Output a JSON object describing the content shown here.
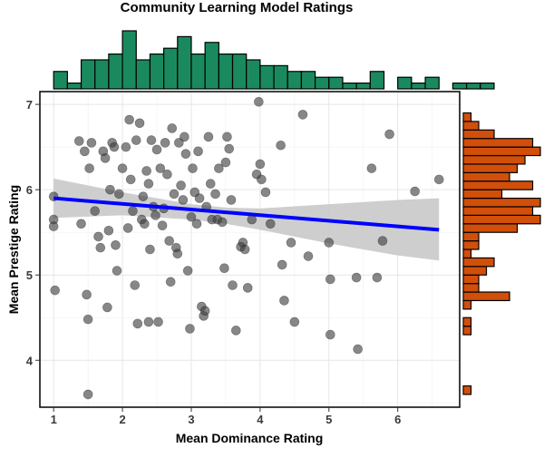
{
  "chart_data": {
    "type": "scatter",
    "title": "Community Learning Model Ratings",
    "xlabel": "Mean Dominance Rating",
    "ylabel": "Mean Prestige Rating",
    "xlim": [
      0.8,
      6.9
    ],
    "ylim": [
      3.45,
      7.15
    ],
    "xticks": [
      "1",
      "2",
      "3",
      "4",
      "5",
      "6"
    ],
    "yticks": [
      "4",
      "5",
      "6",
      "7"
    ],
    "grid": true,
    "colors": {
      "points": "#3d3d3d",
      "regression_line": "#0000ff",
      "confidence_band": "#c9c9c9",
      "top_histogram": "#1a8a5e",
      "right_histogram": "#d14f0a"
    },
    "regression": {
      "x": [
        1.0,
        6.6
      ],
      "y": [
        5.9,
        5.53
      ]
    },
    "confidence_band": {
      "x": [
        1.0,
        2.0,
        3.0,
        3.5,
        4.0,
        5.0,
        6.0,
        6.6
      ],
      "upper": [
        6.13,
        5.97,
        5.83,
        5.79,
        5.78,
        5.83,
        5.88,
        5.9
      ],
      "lower": [
        5.67,
        5.7,
        5.65,
        5.6,
        5.53,
        5.37,
        5.23,
        5.17
      ]
    },
    "points": [
      {
        "x": 1.0,
        "y": 5.92
      },
      {
        "x": 1.0,
        "y": 5.65
      },
      {
        "x": 1.0,
        "y": 5.57
      },
      {
        "x": 1.02,
        "y": 4.82
      },
      {
        "x": 1.37,
        "y": 6.57
      },
      {
        "x": 1.4,
        "y": 5.6
      },
      {
        "x": 1.45,
        "y": 6.45
      },
      {
        "x": 1.48,
        "y": 4.77
      },
      {
        "x": 1.5,
        "y": 4.48
      },
      {
        "x": 1.5,
        "y": 3.6
      },
      {
        "x": 1.52,
        "y": 6.25
      },
      {
        "x": 1.55,
        "y": 6.55
      },
      {
        "x": 1.6,
        "y": 5.75
      },
      {
        "x": 1.65,
        "y": 5.45
      },
      {
        "x": 1.68,
        "y": 5.32
      },
      {
        "x": 1.72,
        "y": 6.45
      },
      {
        "x": 1.75,
        "y": 6.37
      },
      {
        "x": 1.78,
        "y": 4.62
      },
      {
        "x": 1.8,
        "y": 5.52
      },
      {
        "x": 1.82,
        "y": 6.0
      },
      {
        "x": 1.85,
        "y": 6.55
      },
      {
        "x": 1.88,
        "y": 6.5
      },
      {
        "x": 1.9,
        "y": 5.35
      },
      {
        "x": 1.92,
        "y": 5.05
      },
      {
        "x": 1.95,
        "y": 5.95
      },
      {
        "x": 2.0,
        "y": 6.25
      },
      {
        "x": 2.05,
        "y": 6.5
      },
      {
        "x": 2.08,
        "y": 5.55
      },
      {
        "x": 2.1,
        "y": 6.82
      },
      {
        "x": 2.12,
        "y": 6.12
      },
      {
        "x": 2.15,
        "y": 5.75
      },
      {
        "x": 2.18,
        "y": 4.88
      },
      {
        "x": 2.2,
        "y": 6.58
      },
      {
        "x": 2.22,
        "y": 4.43
      },
      {
        "x": 2.25,
        "y": 6.78
      },
      {
        "x": 2.28,
        "y": 5.65
      },
      {
        "x": 2.3,
        "y": 5.92
      },
      {
        "x": 2.32,
        "y": 5.6
      },
      {
        "x": 2.35,
        "y": 6.22
      },
      {
        "x": 2.38,
        "y": 6.07
      },
      {
        "x": 2.38,
        "y": 4.45
      },
      {
        "x": 2.4,
        "y": 5.3
      },
      {
        "x": 2.42,
        "y": 6.58
      },
      {
        "x": 2.45,
        "y": 5.8
      },
      {
        "x": 2.48,
        "y": 5.7
      },
      {
        "x": 2.5,
        "y": 6.47
      },
      {
        "x": 2.52,
        "y": 4.45
      },
      {
        "x": 2.55,
        "y": 6.25
      },
      {
        "x": 2.58,
        "y": 5.58
      },
      {
        "x": 2.6,
        "y": 5.78
      },
      {
        "x": 2.62,
        "y": 6.55
      },
      {
        "x": 2.65,
        "y": 6.18
      },
      {
        "x": 2.68,
        "y": 5.4
      },
      {
        "x": 2.7,
        "y": 4.92
      },
      {
        "x": 2.72,
        "y": 6.72
      },
      {
        "x": 2.75,
        "y": 5.95
      },
      {
        "x": 2.78,
        "y": 5.32
      },
      {
        "x": 2.8,
        "y": 5.25
      },
      {
        "x": 2.82,
        "y": 6.55
      },
      {
        "x": 2.85,
        "y": 6.05
      },
      {
        "x": 2.88,
        "y": 5.88
      },
      {
        "x": 2.9,
        "y": 6.62
      },
      {
        "x": 2.92,
        "y": 6.42
      },
      {
        "x": 2.95,
        "y": 5.05
      },
      {
        "x": 2.98,
        "y": 4.37
      },
      {
        "x": 3.0,
        "y": 5.68
      },
      {
        "x": 3.02,
        "y": 6.25
      },
      {
        "x": 3.05,
        "y": 5.97
      },
      {
        "x": 3.08,
        "y": 5.6
      },
      {
        "x": 3.1,
        "y": 6.45
      },
      {
        "x": 3.12,
        "y": 5.9
      },
      {
        "x": 3.15,
        "y": 4.63
      },
      {
        "x": 3.18,
        "y": 4.52
      },
      {
        "x": 3.2,
        "y": 4.58
      },
      {
        "x": 3.22,
        "y": 5.8
      },
      {
        "x": 3.25,
        "y": 6.62
      },
      {
        "x": 3.28,
        "y": 6.07
      },
      {
        "x": 3.3,
        "y": 5.65
      },
      {
        "x": 3.35,
        "y": 5.95
      },
      {
        "x": 3.38,
        "y": 5.65
      },
      {
        "x": 3.4,
        "y": 6.25
      },
      {
        "x": 3.45,
        "y": 5.62
      },
      {
        "x": 3.48,
        "y": 5.08
      },
      {
        "x": 3.5,
        "y": 6.32
      },
      {
        "x": 3.52,
        "y": 6.62
      },
      {
        "x": 3.55,
        "y": 6.48
      },
      {
        "x": 3.58,
        "y": 5.88
      },
      {
        "x": 3.6,
        "y": 4.88
      },
      {
        "x": 3.65,
        "y": 4.35
      },
      {
        "x": 3.72,
        "y": 5.33
      },
      {
        "x": 3.75,
        "y": 5.38
      },
      {
        "x": 3.78,
        "y": 5.3
      },
      {
        "x": 3.82,
        "y": 4.85
      },
      {
        "x": 3.88,
        "y": 5.65
      },
      {
        "x": 3.95,
        "y": 6.18
      },
      {
        "x": 3.98,
        "y": 7.03
      },
      {
        "x": 4.0,
        "y": 6.3
      },
      {
        "x": 4.02,
        "y": 6.12
      },
      {
        "x": 4.08,
        "y": 5.97
      },
      {
        "x": 4.15,
        "y": 5.6
      },
      {
        "x": 4.3,
        "y": 6.52
      },
      {
        "x": 4.32,
        "y": 5.12
      },
      {
        "x": 4.35,
        "y": 4.7
      },
      {
        "x": 4.45,
        "y": 5.38
      },
      {
        "x": 4.5,
        "y": 4.45
      },
      {
        "x": 4.62,
        "y": 6.88
      },
      {
        "x": 4.7,
        "y": 5.22
      },
      {
        "x": 5.0,
        "y": 5.38
      },
      {
        "x": 5.02,
        "y": 4.95
      },
      {
        "x": 5.02,
        "y": 4.3
      },
      {
        "x": 5.4,
        "y": 4.97
      },
      {
        "x": 5.42,
        "y": 4.13
      },
      {
        "x": 5.62,
        "y": 6.25
      },
      {
        "x": 5.7,
        "y": 4.97
      },
      {
        "x": 5.78,
        "y": 5.4
      },
      {
        "x": 5.88,
        "y": 6.65
      },
      {
        "x": 6.25,
        "y": 5.98
      },
      {
        "x": 6.6,
        "y": 6.12
      }
    ],
    "x_histogram": {
      "bin_start": 1.0,
      "bin_width": 0.2,
      "counts": [
        3,
        1,
        5,
        5,
        6,
        10,
        5,
        6,
        7,
        9,
        6,
        8,
        6,
        6,
        5,
        4,
        4,
        3,
        3,
        2,
        2,
        1,
        1,
        3,
        0,
        2,
        1,
        2,
        0,
        1,
        1,
        1
      ]
    },
    "y_histogram": {
      "bin_start": 3.6,
      "bin_width": 0.1,
      "counts": [
        1,
        0,
        0,
        0,
        0,
        0,
        0,
        1,
        1,
        0,
        1,
        6,
        2,
        2,
        3,
        4,
        1,
        2,
        2,
        7,
        10,
        9,
        10,
        5,
        9,
        6,
        7,
        8,
        10,
        9,
        4,
        2,
        1,
        0,
        0
      ]
    }
  }
}
